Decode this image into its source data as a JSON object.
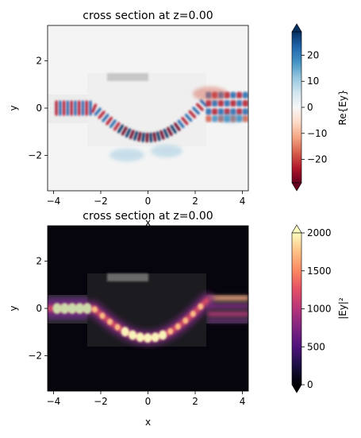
{
  "chart_data": [
    {
      "type": "heatmap",
      "title": "cross section at z=0.00",
      "xlabel": "x",
      "ylabel": "y",
      "xlim": [
        -4.25,
        4.25
      ],
      "ylim": [
        -3.5,
        3.5
      ],
      "xticks": [
        -4,
        -2,
        0,
        2,
        4
      ],
      "yticks": [
        -2,
        0,
        2
      ],
      "x_tick_labels": [
        "−4",
        "−2",
        "0",
        "2",
        "4"
      ],
      "y_tick_labels": [
        "−2",
        "0",
        "2"
      ],
      "colormap": "RdBu",
      "colorbar": {
        "label": "Re{Ey}",
        "min": -29,
        "max": 29,
        "ticks": [
          -20,
          -10,
          0,
          10,
          20
        ],
        "tick_labels": [
          "−20",
          "−10",
          "0",
          "10",
          "20"
        ],
        "extend": "both"
      }
    },
    {
      "type": "heatmap",
      "title": "cross section at z=0.00",
      "xlabel": "x",
      "ylabel": "y",
      "xlim": [
        -4.25,
        4.25
      ],
      "ylim": [
        -3.5,
        3.5
      ],
      "xticks": [
        -4,
        -2,
        0,
        2,
        4
      ],
      "yticks": [
        -2,
        0,
        2
      ],
      "x_tick_labels": [
        "−4",
        "−2",
        "0",
        "2",
        "4"
      ],
      "y_tick_labels": [
        "−2",
        "0",
        "2"
      ],
      "colormap": "magma",
      "colorbar": {
        "label": "|Ey|²",
        "min": 0,
        "max": 2000,
        "ticks": [
          0,
          500,
          1000,
          1500,
          2000
        ],
        "tick_labels": [
          "0",
          "500",
          "1000",
          "1500",
          "2000"
        ],
        "extend": "both"
      }
    }
  ]
}
